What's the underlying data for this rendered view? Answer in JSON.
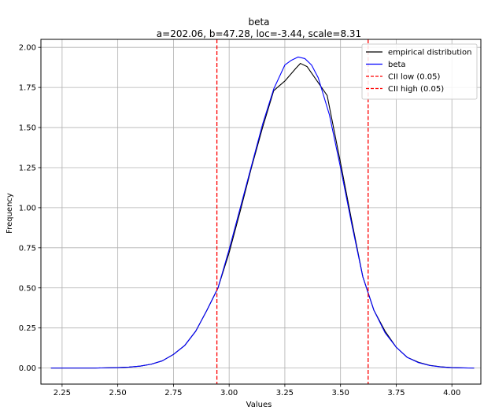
{
  "chart_data": {
    "type": "line",
    "title": "beta",
    "subtitle": "a=202.06, b=47.28, loc=-3.44, scale=8.31",
    "xlabel": "Values",
    "ylabel": "Frequency",
    "xlim": [
      2.155,
      4.13
    ],
    "ylim": [
      -0.1,
      2.05
    ],
    "grid": true,
    "legend_position": "top-right",
    "x_ticks": [
      2.25,
      2.5,
      2.75,
      3.0,
      3.25,
      3.5,
      3.75,
      4.0
    ],
    "x_tick_labels": [
      "2.25",
      "2.50",
      "2.75",
      "3.00",
      "3.25",
      "3.50",
      "3.75",
      "4.00"
    ],
    "y_ticks": [
      0,
      0.25,
      0.5,
      0.75,
      1.0,
      1.25,
      1.5,
      1.75,
      2.0
    ],
    "y_tick_labels": [
      "0.00",
      "0.25",
      "0.50",
      "0.75",
      "1.00",
      "1.25",
      "1.50",
      "1.75",
      "2.00"
    ],
    "series": [
      {
        "name": "empirical distribution",
        "color": "#000000",
        "style": "solid",
        "x": [
          2.2,
          2.3,
          2.4,
          2.5,
          2.55,
          2.6,
          2.65,
          2.7,
          2.75,
          2.8,
          2.85,
          2.9,
          2.95,
          3.0,
          3.05,
          3.1,
          3.15,
          3.2,
          3.25,
          3.3,
          3.32,
          3.35,
          3.39,
          3.44,
          3.5,
          3.55,
          3.6,
          3.65,
          3.7,
          3.75,
          3.8,
          3.85,
          3.9,
          3.95,
          4.0,
          4.05,
          4.1
        ],
        "y": [
          0.0,
          0.0,
          0.0,
          0.003,
          0.006,
          0.012,
          0.024,
          0.045,
          0.085,
          0.14,
          0.23,
          0.36,
          0.5,
          0.72,
          0.98,
          1.25,
          1.5,
          1.73,
          1.79,
          1.87,
          1.9,
          1.88,
          1.8,
          1.7,
          1.28,
          0.92,
          0.57,
          0.36,
          0.23,
          0.13,
          0.066,
          0.036,
          0.017,
          0.008,
          0.003,
          0.001,
          0.0
        ]
      },
      {
        "name": "beta",
        "color": "#0000ff",
        "style": "solid",
        "x": [
          2.2,
          2.3,
          2.4,
          2.5,
          2.55,
          2.6,
          2.65,
          2.7,
          2.75,
          2.8,
          2.85,
          2.9,
          2.95,
          3.0,
          3.05,
          3.1,
          3.15,
          3.2,
          3.25,
          3.28,
          3.31,
          3.34,
          3.37,
          3.4,
          3.45,
          3.5,
          3.55,
          3.6,
          3.65,
          3.7,
          3.75,
          3.8,
          3.85,
          3.9,
          3.95,
          4.0,
          4.05,
          4.1
        ],
        "y": [
          0.0,
          0.0,
          0.0,
          0.003,
          0.006,
          0.012,
          0.024,
          0.045,
          0.085,
          0.14,
          0.23,
          0.36,
          0.5,
          0.74,
          1.0,
          1.26,
          1.52,
          1.74,
          1.89,
          1.92,
          1.94,
          1.93,
          1.89,
          1.81,
          1.58,
          1.25,
          0.9,
          0.57,
          0.36,
          0.22,
          0.13,
          0.066,
          0.034,
          0.016,
          0.007,
          0.003,
          0.001,
          0.0
        ]
      },
      {
        "name": "CII low (0.05)",
        "color": "#ff0000",
        "style": "dashed",
        "vline": 2.945
      },
      {
        "name": "CII high (0.05)",
        "color": "#ff0000",
        "style": "dashed",
        "vline": 3.624
      }
    ]
  }
}
